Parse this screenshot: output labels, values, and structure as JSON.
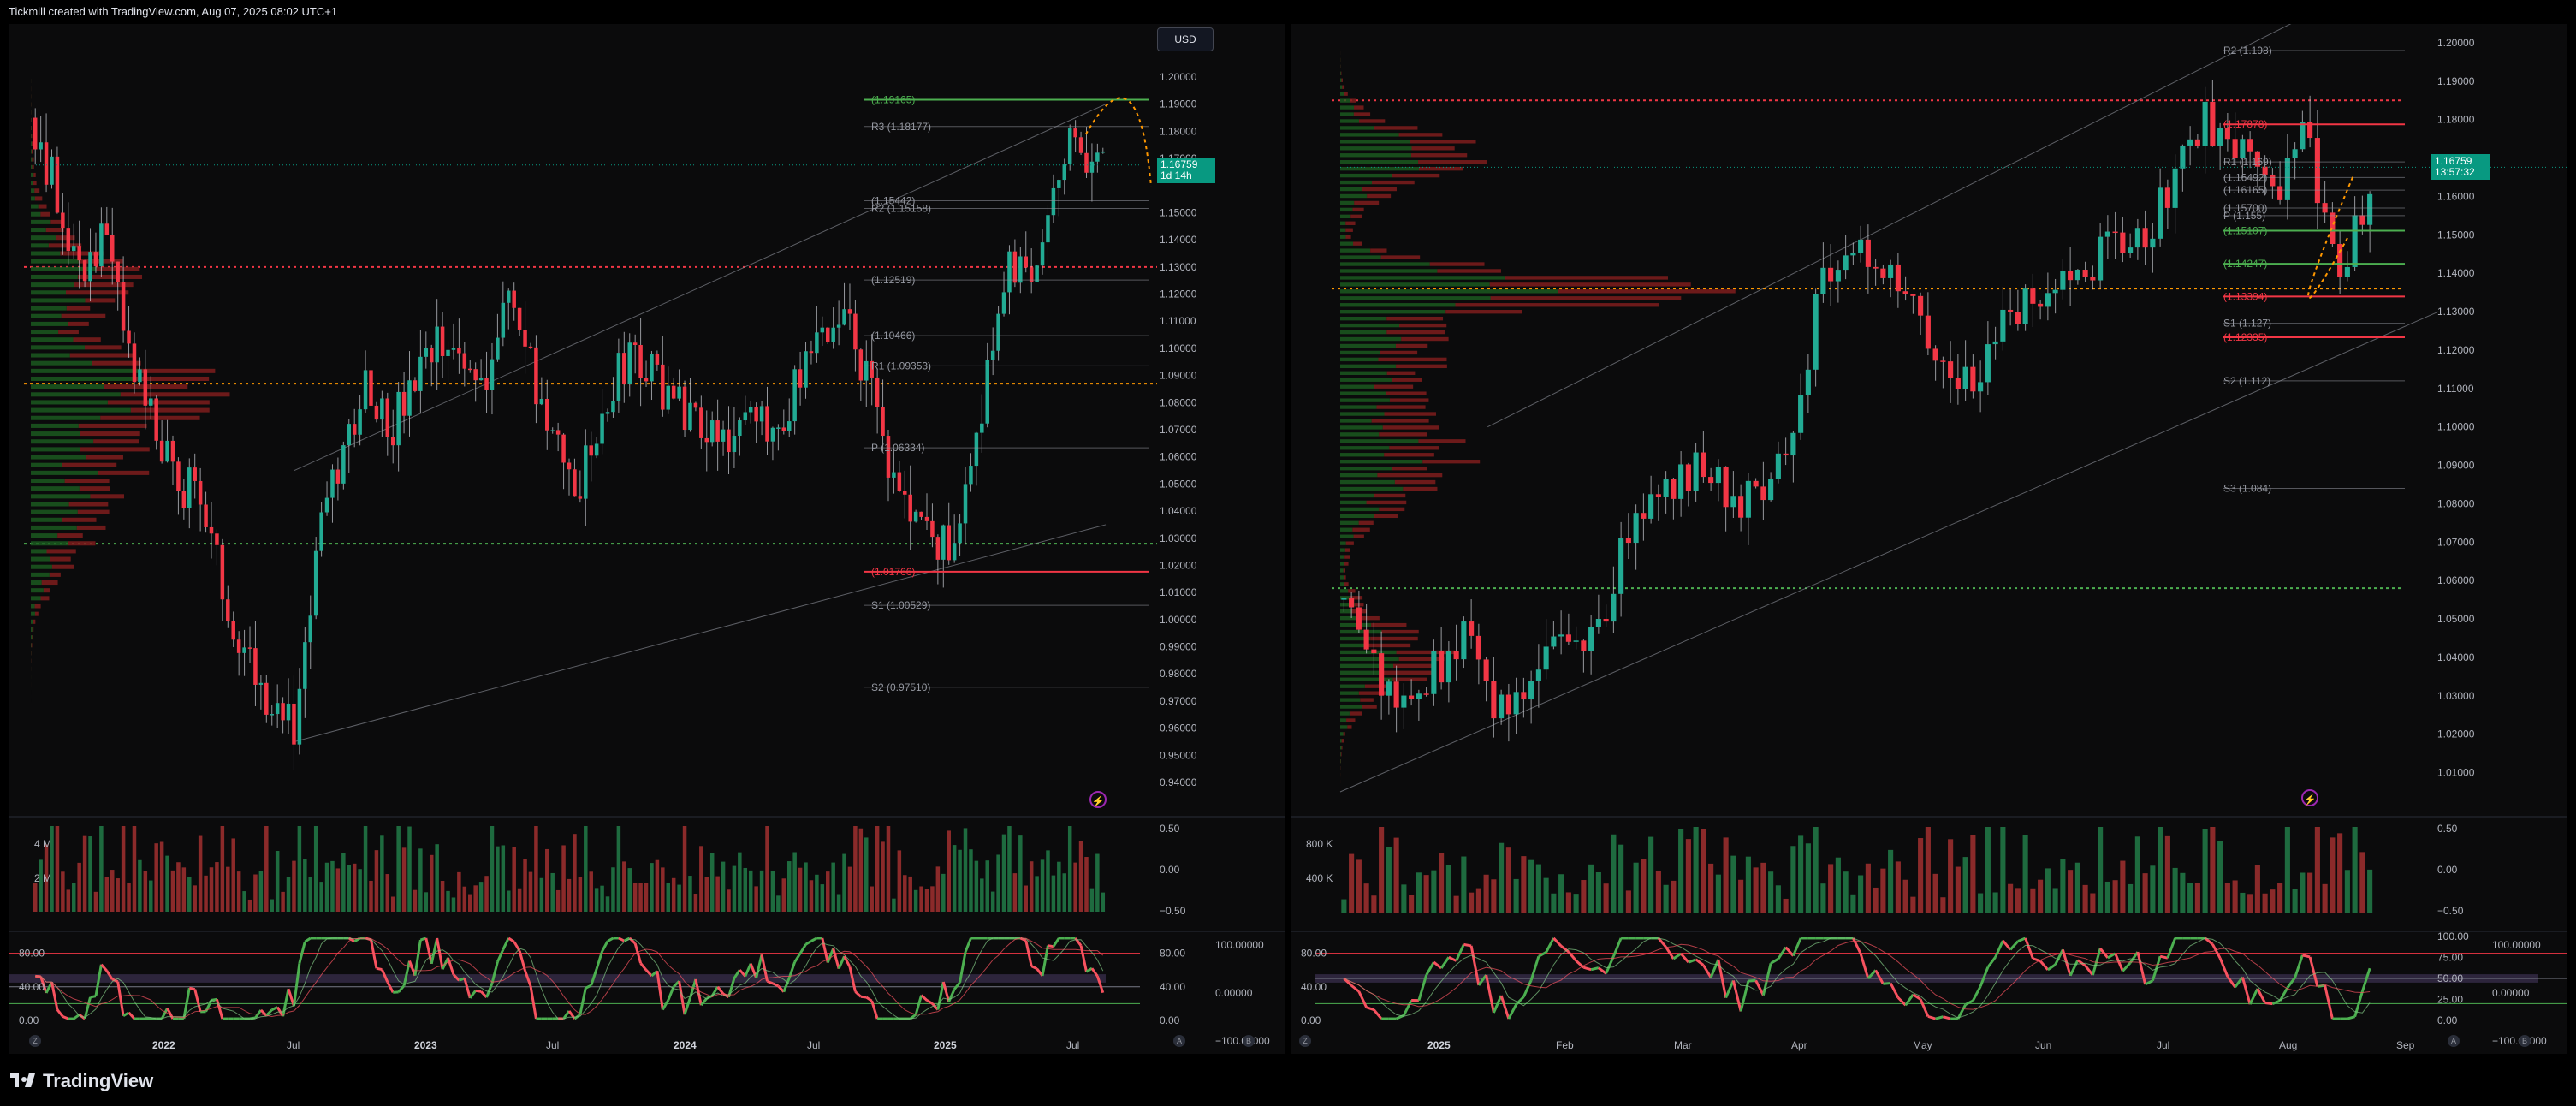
{
  "header": {
    "title": "Tickmill created with TradingView.com, Aug 07, 2025 08:02 UTC+1"
  },
  "footer": {
    "brand": "TradingView"
  },
  "colors": {
    "up": "#22ab94",
    "down": "#f23645",
    "pivot_green": "#4caf50",
    "pivot_red": "#f23645",
    "projection": "#ff9800",
    "rsi_up": "#4caf50",
    "rsi_down": "#f7525f"
  },
  "left_panel": {
    "currency_button": "USD",
    "last_price": "1.16759",
    "countdown": "1d 14h",
    "price_axis": [
      "1.20000",
      "1.19000",
      "1.18000",
      "1.17000",
      "1.15000",
      "1.14000",
      "1.13000",
      "1.12000",
      "1.11000",
      "1.10000",
      "1.09000",
      "1.08000",
      "1.07000",
      "1.06000",
      "1.05000",
      "1.04000",
      "1.03000",
      "1.02000",
      "1.01000",
      "1.00000",
      "0.99000",
      "0.98000",
      "0.97000",
      "0.96000",
      "0.95000",
      "0.94000"
    ],
    "time_axis": [
      {
        "label": "2022",
        "bold": true
      },
      {
        "label": "Jul",
        "bold": false
      },
      {
        "label": "2023",
        "bold": true
      },
      {
        "label": "Jul",
        "bold": false
      },
      {
        "label": "2024",
        "bold": true
      },
      {
        "label": "Jul",
        "bold": false
      },
      {
        "label": "2025",
        "bold": true
      },
      {
        "label": "Jul",
        "bold": false
      }
    ],
    "pivots": [
      {
        "label": "(1.19165)",
        "color": "green"
      },
      {
        "label": "R3 (1.18177)",
        "color": "grey"
      },
      {
        "label": "(1.15442)",
        "color": "grey"
      },
      {
        "label": "R2 (1.15158)",
        "color": "grey"
      },
      {
        "label": "(1.12519)",
        "color": "grey"
      },
      {
        "label": "(1.10466)",
        "color": "grey"
      },
      {
        "label": "R1 (1.09353)",
        "color": "grey"
      },
      {
        "label": "P (1.06334)",
        "color": "grey"
      },
      {
        "label": "(1.01766)",
        "color": "red"
      },
      {
        "label": "S1 (1.00529)",
        "color": "grey"
      },
      {
        "label": "S2 (0.97510)",
        "color": "grey"
      }
    ],
    "volume_axis": [
      "4 M",
      "2 M"
    ],
    "volume_right_axis": [
      "0.50",
      "0.00",
      "−0.50"
    ],
    "rsi_axis": [
      "80.00",
      "40.00",
      "0.00"
    ],
    "rsi_right_axis": [
      "80.00",
      "40.00",
      "0.00"
    ],
    "osc_right_axis": [
      "100.00000",
      "0.00000",
      "−100.00000"
    ]
  },
  "right_panel": {
    "last_price": "1.16759",
    "countdown": "13:57:32",
    "price_axis": [
      "1.20000",
      "1.19000",
      "1.18000",
      "1.17000",
      "1.16000",
      "1.15000",
      "1.14000",
      "1.13000",
      "1.12000",
      "1.11000",
      "1.10000",
      "1.09000",
      "1.08000",
      "1.07000",
      "1.06000",
      "1.05000",
      "1.04000",
      "1.03000",
      "1.02000",
      "1.01000"
    ],
    "time_axis": [
      {
        "label": "2025",
        "bold": true
      },
      {
        "label": "Feb",
        "bold": false
      },
      {
        "label": "Mar",
        "bold": false
      },
      {
        "label": "Apr",
        "bold": false
      },
      {
        "label": "May",
        "bold": false
      },
      {
        "label": "Jun",
        "bold": false
      },
      {
        "label": "Jul",
        "bold": false
      },
      {
        "label": "Aug",
        "bold": false
      },
      {
        "label": "Sep",
        "bold": false
      }
    ],
    "pivots": [
      {
        "label": "R2 (1.198)",
        "color": "grey"
      },
      {
        "label": "(1.17878)",
        "color": "red"
      },
      {
        "label": "R1 (1.169)",
        "color": "grey"
      },
      {
        "label": "(1.16492)",
        "color": "grey"
      },
      {
        "label": "(1.16165)",
        "color": "grey"
      },
      {
        "label": "(1.15700)",
        "color": "grey"
      },
      {
        "label": "P (1.155)",
        "color": "grey"
      },
      {
        "label": "(1.15107)",
        "color": "green"
      },
      {
        "label": "(1.14247)",
        "color": "green"
      },
      {
        "label": "(1.13394)",
        "color": "red"
      },
      {
        "label": "S1 (1.127)",
        "color": "grey"
      },
      {
        "label": "(1.12335)",
        "color": "red"
      },
      {
        "label": "S2 (1.112)",
        "color": "grey"
      },
      {
        "label": "S3 (1.084)",
        "color": "grey"
      }
    ],
    "volume_axis": [
      "800 K",
      "400 K"
    ],
    "volume_right_axis": [
      "0.50",
      "0.00",
      "−0.50"
    ],
    "rsi_axis": [
      "80.00",
      "40.00",
      "0.00"
    ],
    "rsi_right_axis": [
      "100.00",
      "75.00",
      "50.00",
      "25.00",
      "0.00"
    ],
    "osc_right_axis": [
      "100.00000",
      "0.00000",
      "−100.00000"
    ]
  },
  "chart_data": [
    {
      "type": "candlestick",
      "symbol_quote_currency": "USD",
      "x_range": [
        "2021-11",
        "2025-08"
      ],
      "ylim": [
        0.94,
        1.2
      ],
      "last_price": 1.16759,
      "anchor_path": [
        {
          "t": "2021-11",
          "price": 1.185
        },
        {
          "t": "2022-01",
          "price": 1.13
        },
        {
          "t": "2022-02",
          "price": 1.14
        },
        {
          "t": "2022-03",
          "price": 1.1
        },
        {
          "t": "2022-05",
          "price": 1.05
        },
        {
          "t": "2022-06",
          "price": 1.05
        },
        {
          "t": "2022-07",
          "price": 1.01
        },
        {
          "t": "2022-09",
          "price": 0.97
        },
        {
          "t": "2022-10",
          "price": 0.96
        },
        {
          "t": "2022-11",
          "price": 1.03
        },
        {
          "t": "2022-12",
          "price": 1.06
        },
        {
          "t": "2023-01",
          "price": 1.09
        },
        {
          "t": "2023-02",
          "price": 1.07
        },
        {
          "t": "2023-04",
          "price": 1.1
        },
        {
          "t": "2023-06",
          "price": 1.09
        },
        {
          "t": "2023-07",
          "price": 1.12
        },
        {
          "t": "2023-08",
          "price": 1.09
        },
        {
          "t": "2023-09",
          "price": 1.06
        },
        {
          "t": "2023-10",
          "price": 1.05
        },
        {
          "t": "2023-12",
          "price": 1.1
        },
        {
          "t": "2024-02",
          "price": 1.08
        },
        {
          "t": "2024-04",
          "price": 1.07
        },
        {
          "t": "2024-06",
          "price": 1.07
        },
        {
          "t": "2024-08",
          "price": 1.1
        },
        {
          "t": "2024-09",
          "price": 1.115
        },
        {
          "t": "2024-10",
          "price": 1.09
        },
        {
          "t": "2024-11",
          "price": 1.05
        },
        {
          "t": "2025-01",
          "price": 1.025
        },
        {
          "t": "2025-02",
          "price": 1.04
        },
        {
          "t": "2025-03",
          "price": 1.09
        },
        {
          "t": "2025-04",
          "price": 1.13
        },
        {
          "t": "2025-05",
          "price": 1.13
        },
        {
          "t": "2025-06",
          "price": 1.17
        },
        {
          "t": "2025-07",
          "price": 1.175
        },
        {
          "t": "2025-08",
          "price": 1.1676
        }
      ],
      "pivot_levels": [
        1.19165,
        1.18177,
        1.15442,
        1.15158,
        1.12519,
        1.10466,
        1.09353,
        1.06334,
        1.01766,
        1.00529,
        0.9751
      ],
      "dotted_levels": [
        {
          "price": 1.13,
          "color": "red"
        },
        {
          "price": 1.087,
          "color": "orange"
        },
        {
          "price": 1.028,
          "color": "green"
        }
      ],
      "channel": {
        "upper": [
          {
            "t": "2022-10",
            "price": 1.055
          },
          {
            "t": "2025-08",
            "price": 1.19
          }
        ],
        "lower": [
          {
            "t": "2022-10",
            "price": 0.955
          },
          {
            "t": "2025-08",
            "price": 1.035
          }
        ]
      },
      "volume_ylim": [
        0,
        5000000
      ],
      "rsi_ylim": [
        0,
        100
      ],
      "rsi_levels": [
        80,
        40,
        20
      ]
    },
    {
      "type": "candlestick",
      "symbol_quote_currency": "USD",
      "x_range": [
        "2025-01-01",
        "2025-09-10"
      ],
      "ylim": [
        1.005,
        1.2
      ],
      "last_price": 1.16759,
      "anchor_path": [
        {
          "t": "2025-01-01",
          "price": 1.055
        },
        {
          "t": "2025-01-13",
          "price": 1.025
        },
        {
          "t": "2025-01-27",
          "price": 1.045
        },
        {
          "t": "2025-02-03",
          "price": 1.025
        },
        {
          "t": "2025-02-12",
          "price": 1.04
        },
        {
          "t": "2025-02-25",
          "price": 1.05
        },
        {
          "t": "2025-03-05",
          "price": 1.08
        },
        {
          "t": "2025-03-18",
          "price": 1.09
        },
        {
          "t": "2025-03-27",
          "price": 1.08
        },
        {
          "t": "2025-04-07",
          "price": 1.095
        },
        {
          "t": "2025-04-11",
          "price": 1.135
        },
        {
          "t": "2025-04-21",
          "price": 1.145
        },
        {
          "t": "2025-05-01",
          "price": 1.13
        },
        {
          "t": "2025-05-12",
          "price": 1.11
        },
        {
          "t": "2025-05-20",
          "price": 1.125
        },
        {
          "t": "2025-05-30",
          "price": 1.135
        },
        {
          "t": "2025-06-10",
          "price": 1.145
        },
        {
          "t": "2025-06-20",
          "price": 1.15
        },
        {
          "t": "2025-07-01",
          "price": 1.18
        },
        {
          "t": "2025-07-10",
          "price": 1.17
        },
        {
          "t": "2025-07-16",
          "price": 1.16
        },
        {
          "t": "2025-07-23",
          "price": 1.175
        },
        {
          "t": "2025-07-31",
          "price": 1.14
        },
        {
          "t": "2025-08-04",
          "price": 1.158
        },
        {
          "t": "2025-08-07",
          "price": 1.1676
        }
      ],
      "pivot_levels": [
        1.198,
        1.17878,
        1.169,
        1.16492,
        1.16165,
        1.157,
        1.155,
        1.15107,
        1.14247,
        1.13394,
        1.127,
        1.12335,
        1.112,
        1.084
      ],
      "dotted_levels": [
        {
          "price": 1.185,
          "color": "red"
        },
        {
          "price": 1.136,
          "color": "orange"
        },
        {
          "price": 1.058,
          "color": "green"
        }
      ],
      "channel": {
        "upper": [
          {
            "t": "2025-02-01",
            "price": 1.1
          },
          {
            "t": "2025-07-20",
            "price": 1.205
          }
        ],
        "lower": [
          {
            "t": "2025-01-01",
            "price": 1.005
          },
          {
            "t": "2025-08-20",
            "price": 1.13
          }
        ]
      },
      "volume_ylim": [
        0,
        1000000
      ],
      "rsi_ylim": [
        0,
        100
      ],
      "rsi_levels": [
        80,
        50,
        20
      ]
    }
  ]
}
